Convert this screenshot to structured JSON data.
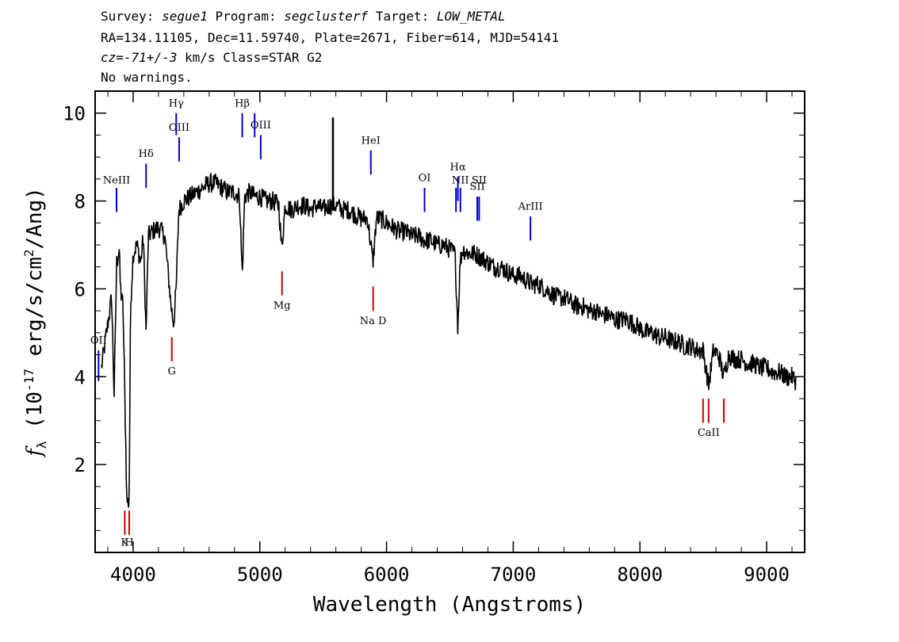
{
  "header": {
    "survey_label": "Survey:",
    "survey": "segue1",
    "program_label": "Program:",
    "program": "segclusterf",
    "target_label": "Target:",
    "target": "LOW_METAL",
    "line2": "RA=134.11105, Dec=11.59740, Plate=2671, Fiber=614, MJD=54141",
    "cz_label": "cz=",
    "cz_value": "-71+/-3",
    "cz_rest": " km/s Class=STAR G2",
    "line4": "No warnings."
  },
  "chart_data": {
    "type": "line",
    "xlabel": "Wavelength (Angstroms)",
    "ylabel": "f_λ (10^-17 erg/s/cm²/Ang)",
    "ylabel_parts": {
      "f": "f",
      "sub": "λ",
      "a": " (10",
      "exp": "-17",
      "b": " erg/s/cm",
      "exp2": "2",
      "c": "/Ang)"
    },
    "xlim": [
      3700,
      9300
    ],
    "ylim": [
      0,
      10.5
    ],
    "xticks": [
      4000,
      5000,
      6000,
      7000,
      8000,
      9000
    ],
    "yticks": [
      2,
      4,
      6,
      8,
      10
    ],
    "grid": false,
    "series": [
      {
        "color": "#000000",
        "x": [
          3750,
          3800,
          3830,
          3850,
          3870,
          3890,
          3900,
          3920,
          3935,
          3950,
          3968,
          3980,
          4000,
          4030,
          4060,
          4080,
          4102,
          4120,
          4150,
          4200,
          4250,
          4300,
          4320,
          4340,
          4360,
          4400,
          4450,
          4500,
          4550,
          4600,
          4650,
          4700,
          4750,
          4800,
          4840,
          4861,
          4880,
          4920,
          4960,
          5000,
          5050,
          5100,
          5150,
          5172,
          5200,
          5250,
          5300,
          5350,
          5400,
          5450,
          5500,
          5550,
          5600,
          5650,
          5700,
          5750,
          5800,
          5850,
          5893,
          5920,
          5950,
          6000,
          6050,
          6100,
          6150,
          6200,
          6250,
          6300,
          6350,
          6400,
          6450,
          6500,
          6540,
          6563,
          6580,
          6600,
          6650,
          6700,
          6750,
          6800,
          6850,
          6900,
          6950,
          7000,
          7050,
          7100,
          7150,
          7200,
          7250,
          7300,
          7350,
          7400,
          7450,
          7500,
          7550,
          7600,
          7650,
          7700,
          7750,
          7800,
          7850,
          7900,
          7950,
          8000,
          8050,
          8100,
          8150,
          8200,
          8250,
          8300,
          8350,
          8400,
          8450,
          8498,
          8542,
          8580,
          8620,
          8662,
          8700,
          8750,
          8800,
          8850,
          8900,
          8950,
          9000,
          9050,
          9100,
          9150,
          9200,
          9230
        ],
        "values": [
          4.2,
          5.2,
          5.8,
          3.6,
          6.6,
          6.9,
          6.0,
          5.6,
          3.5,
          1.2,
          1.1,
          5.6,
          6.8,
          7.0,
          6.6,
          7.2,
          5.0,
          7.2,
          7.3,
          7.4,
          7.2,
          5.6,
          5.2,
          6.0,
          7.8,
          8.0,
          8.1,
          8.2,
          8.3,
          8.4,
          8.4,
          8.3,
          8.2,
          8.2,
          8.1,
          6.3,
          8.1,
          8.2,
          8.1,
          8.1,
          8.0,
          8.0,
          7.9,
          6.9,
          7.9,
          7.8,
          7.9,
          7.9,
          7.8,
          7.9,
          7.8,
          7.9,
          7.9,
          7.8,
          7.8,
          7.7,
          7.6,
          7.6,
          6.6,
          7.6,
          7.6,
          7.5,
          7.4,
          7.3,
          7.3,
          7.2,
          7.2,
          7.1,
          7.1,
          7.0,
          7.0,
          6.9,
          6.8,
          5.1,
          6.6,
          6.9,
          6.8,
          6.8,
          6.7,
          6.6,
          6.5,
          6.5,
          6.4,
          6.3,
          6.3,
          6.2,
          6.1,
          6.1,
          6.0,
          5.9,
          5.8,
          5.8,
          5.7,
          5.6,
          5.6,
          5.5,
          5.5,
          5.4,
          5.4,
          5.3,
          5.3,
          5.3,
          5.2,
          5.1,
          5.0,
          5.0,
          4.9,
          4.9,
          4.8,
          4.8,
          4.7,
          4.7,
          4.6,
          4.6,
          3.8,
          4.6,
          4.5,
          4.0,
          4.5,
          4.4,
          4.4,
          4.3,
          4.3,
          4.2,
          4.2,
          4.1,
          4.1,
          4.0,
          4.0,
          3.9
        ]
      }
    ],
    "error_band_color": "#b4b4b4",
    "emission_lines": [
      {
        "label": "OII",
        "wave": 3727,
        "y_bottom": 3.9,
        "y_top": 4.6,
        "label_y": 4.75,
        "color": "#0000cc"
      },
      {
        "label": "NeIII",
        "wave": 3869,
        "y_bottom": 7.75,
        "y_top": 8.3,
        "label_y": 8.4,
        "color": "#0000cc"
      },
      {
        "label": "Hδ",
        "wave": 4102,
        "y_bottom": 8.3,
        "y_top": 8.85,
        "label_y": 9.0,
        "color": "#0000cc"
      },
      {
        "label": "Hγ",
        "wave": 4340,
        "y_bottom": 9.5,
        "y_top": 10.0,
        "label_y": 10.15,
        "color": "#0000cc"
      },
      {
        "label": "OIII",
        "wave": 4363,
        "y_bottom": 8.9,
        "y_top": 9.45,
        "label_y": 9.6,
        "color": "#0000cc"
      },
      {
        "label": "Hβ",
        "wave": 4861,
        "y_bottom": 9.45,
        "y_top": 10.0,
        "label_y": 10.15,
        "color": "#0000cc"
      },
      {
        "label": "OIII",
        "wave": 4959,
        "y_bottom": 9.45,
        "y_top": 10.0,
        "label_y": 0,
        "color": "#0000cc"
      },
      {
        "label": "OIII",
        "wave": 5007,
        "y_bottom": 8.95,
        "y_top": 9.5,
        "label_y": 9.65,
        "color": "#0000cc"
      },
      {
        "label": "HeI",
        "wave": 5876,
        "y_bottom": 8.6,
        "y_top": 9.15,
        "label_y": 9.3,
        "color": "#0000cc"
      },
      {
        "label": "OI",
        "wave": 6300,
        "y_bottom": 7.75,
        "y_top": 8.3,
        "label_y": 8.45,
        "color": "#0000cc"
      },
      {
        "label": "NII",
        "wave": 6548,
        "y_bottom": 7.75,
        "y_top": 8.3,
        "label_y": 0,
        "color": "#0000cc"
      },
      {
        "label": "Hα",
        "wave": 6563,
        "y_bottom": 8.0,
        "y_top": 8.55,
        "label_y": 8.7,
        "color": "#0000cc"
      },
      {
        "label": "NII",
        "wave": 6583,
        "y_bottom": 7.75,
        "y_top": 8.3,
        "label_y": 8.4,
        "color": "#0000cc"
      },
      {
        "label": "SII",
        "wave": 6716,
        "y_bottom": 7.55,
        "y_top": 8.1,
        "label_y": 8.25,
        "color": "#0000cc"
      },
      {
        "label": "SII",
        "wave": 6731,
        "y_bottom": 7.55,
        "y_top": 8.1,
        "label_y": 8.4,
        "color": "#0000cc"
      },
      {
        "label": "ArIII",
        "wave": 7136,
        "y_bottom": 7.1,
        "y_top": 7.65,
        "label_y": 7.8,
        "color": "#0000cc"
      }
    ],
    "absorption_lines": [
      {
        "label": "K",
        "wave": 3934,
        "y_bottom": 0.4,
        "y_top": 0.95,
        "label_y": 0.15,
        "color": "#cc0000"
      },
      {
        "label": "H",
        "wave": 3969,
        "y_bottom": 0.4,
        "y_top": 0.95,
        "label_y": 0.15,
        "color": "#cc0000"
      },
      {
        "label": "G",
        "wave": 4305,
        "y_bottom": 4.35,
        "y_top": 4.9,
        "label_y": 4.05,
        "color": "#cc0000"
      },
      {
        "label": "Mg",
        "wave": 5175,
        "y_bottom": 5.85,
        "y_top": 6.4,
        "label_y": 5.55,
        "color": "#cc0000"
      },
      {
        "label": "Na D",
        "wave": 5894,
        "y_bottom": 5.5,
        "y_top": 6.05,
        "label_y": 5.2,
        "color": "#cc0000"
      },
      {
        "label": "",
        "wave": 8498,
        "y_bottom": 2.95,
        "y_top": 3.5,
        "label_y": 0,
        "color": "#cc0000"
      },
      {
        "label": "CaII",
        "wave": 8542,
        "y_bottom": 2.95,
        "y_top": 3.5,
        "label_y": 2.65,
        "color": "#cc0000"
      },
      {
        "label": "",
        "wave": 8662,
        "y_bottom": 2.95,
        "y_top": 3.5,
        "label_y": 0,
        "color": "#cc0000"
      }
    ]
  }
}
